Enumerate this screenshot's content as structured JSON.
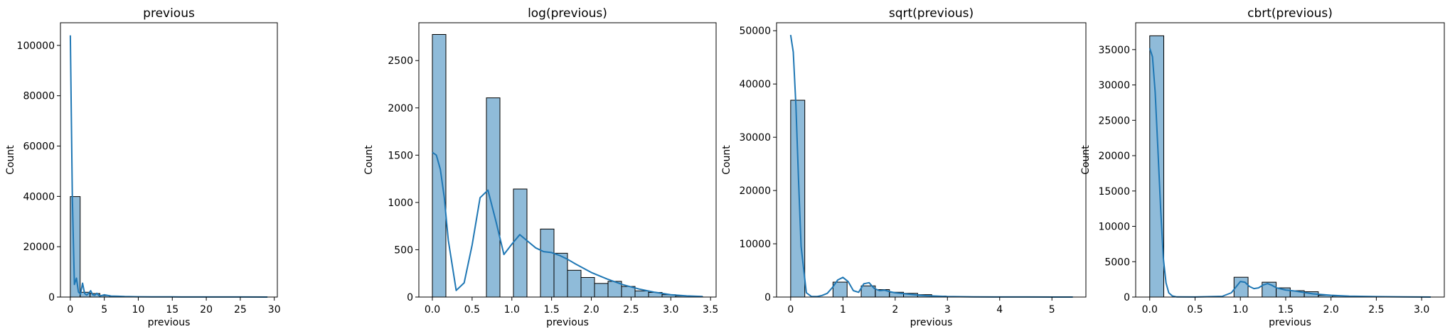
{
  "chart_data": [
    {
      "type": "bar",
      "title": "previous",
      "xlabel": "previous",
      "ylabel": "Count",
      "xlim": [
        -1.45,
        30.45
      ],
      "ylim": [
        0,
        109000
      ],
      "xticks": [
        0,
        5,
        10,
        15,
        20,
        25,
        30
      ],
      "yticks": [
        0,
        20000,
        40000,
        60000,
        80000,
        100000
      ],
      "bin_edges": [
        0,
        1.45,
        2.9,
        4.35,
        5.8,
        7.25,
        8.7,
        10.15,
        11.6,
        13.05,
        14.5,
        15.95,
        17.4,
        18.85,
        20.3,
        21.75,
        23.2,
        24.65,
        26.1,
        27.55,
        29
      ],
      "values": [
        39922,
        1900,
        1400,
        600,
        250,
        120,
        60,
        30,
        15,
        10,
        5,
        4,
        3,
        2,
        2,
        1,
        1,
        1,
        1,
        1
      ],
      "kde": {
        "x": [
          0,
          0.3,
          0.6,
          0.9,
          1.2,
          1.5,
          1.8,
          2.1,
          2.4,
          2.7,
          3.0,
          3.3,
          3.6,
          3.9,
          4.2,
          4.5,
          5,
          6,
          7,
          8,
          10,
          12,
          15,
          20,
          25,
          29
        ],
        "y": [
          104000,
          40000,
          5000,
          7500,
          2000,
          1200,
          5500,
          1500,
          800,
          1500,
          2500,
          900,
          700,
          1500,
          600,
          500,
          900,
          400,
          300,
          200,
          120,
          80,
          50,
          30,
          20,
          10
        ]
      }
    },
    {
      "type": "bar",
      "title": "log(previous)",
      "xlabel": "previous",
      "ylabel": "Count",
      "xlim": [
        -0.17,
        3.57
      ],
      "ylim": [
        0,
        2900
      ],
      "xticks": [
        "0.0",
        "0.5",
        "1.0",
        "1.5",
        "2.0",
        "2.5",
        "3.0",
        "3.5"
      ],
      "yticks": [
        0,
        500,
        1000,
        1500,
        2000,
        2500
      ],
      "bin_edges": [
        0,
        0.17,
        0.34,
        0.51,
        0.68,
        0.85,
        1.02,
        1.19,
        1.36,
        1.53,
        1.7,
        1.87,
        2.04,
        2.21,
        2.38,
        2.55,
        2.72,
        2.89,
        3.06,
        3.23,
        3.4
      ],
      "values": [
        2776,
        0,
        0,
        0,
        2106,
        0,
        1142,
        0,
        719,
        463,
        283,
        207,
        144,
        166,
        112,
        65,
        49,
        25,
        12,
        5
      ],
      "kde": {
        "x": [
          0,
          0.05,
          0.1,
          0.15,
          0.2,
          0.3,
          0.4,
          0.5,
          0.6,
          0.7,
          0.8,
          0.9,
          1.0,
          1.1,
          1.2,
          1.3,
          1.4,
          1.5,
          1.6,
          1.7,
          1.8,
          2.0,
          2.2,
          2.4,
          2.6,
          2.8,
          3.0,
          3.2,
          3.4
        ],
        "y": [
          1530,
          1500,
          1350,
          1050,
          600,
          70,
          150,
          550,
          1050,
          1130,
          800,
          450,
          560,
          660,
          590,
          520,
          480,
          470,
          440,
          400,
          350,
          260,
          190,
          130,
          85,
          50,
          25,
          12,
          5
        ]
      }
    },
    {
      "type": "bar",
      "title": "sqrt(previous)",
      "xlabel": "previous",
      "ylabel": "Count",
      "xlim": [
        -0.27,
        5.65
      ],
      "ylim": [
        0,
        51500
      ],
      "xticks": [
        0,
        1,
        2,
        3,
        4,
        5
      ],
      "yticks": [
        0,
        10000,
        20000,
        30000,
        40000,
        50000
      ],
      "bin_edges": [
        0,
        0.27,
        0.54,
        0.81,
        1.08,
        1.35,
        1.62,
        1.89,
        2.16,
        2.43,
        2.7,
        2.97,
        3.24,
        3.51,
        3.78,
        4.05,
        4.32,
        4.59,
        4.86,
        5.13,
        5.4
      ],
      "values": [
        36954,
        0,
        0,
        2800,
        0,
        2100,
        1400,
        900,
        700,
        450,
        200,
        80,
        40,
        20,
        12,
        8,
        5,
        3,
        2,
        1
      ],
      "kde": {
        "x": [
          0,
          0.05,
          0.1,
          0.15,
          0.2,
          0.3,
          0.4,
          0.5,
          0.6,
          0.7,
          0.8,
          0.9,
          1.0,
          1.1,
          1.2,
          1.3,
          1.4,
          1.5,
          1.6,
          1.7,
          1.8,
          1.9,
          2.0,
          2.2,
          2.4,
          2.6,
          3.0,
          3.5,
          4.0,
          4.5,
          5.0,
          5.4
        ],
        "y": [
          49200,
          46000,
          36000,
          22000,
          9500,
          800,
          100,
          100,
          300,
          700,
          1800,
          3200,
          3700,
          2900,
          1200,
          900,
          2500,
          2700,
          1600,
          1200,
          1300,
          1000,
          800,
          600,
          400,
          250,
          100,
          40,
          20,
          10,
          5,
          2
        ]
      }
    },
    {
      "type": "bar",
      "title": "cbrt(previous)",
      "xlabel": "previous",
      "ylabel": "Count",
      "xlim": [
        -0.155,
        3.25
      ],
      "ylim": [
        0,
        38800
      ],
      "xticks": [
        "0.0",
        "0.5",
        "1.0",
        "1.5",
        "2.0",
        "2.5",
        "3.0"
      ],
      "yticks": [
        0,
        5000,
        10000,
        15000,
        20000,
        25000,
        30000,
        35000
      ],
      "bin_edges": [
        0,
        0.155,
        0.31,
        0.465,
        0.62,
        0.775,
        0.93,
        1.085,
        1.24,
        1.395,
        1.55,
        1.705,
        1.86,
        2.015,
        2.17,
        2.325,
        2.48,
        2.635,
        2.79,
        2.945,
        3.1
      ],
      "values": [
        36954,
        0,
        0,
        0,
        0,
        0,
        2800,
        0,
        2100,
        1300,
        900,
        750,
        250,
        150,
        80,
        50,
        30,
        15,
        8,
        5
      ],
      "kde": {
        "x": [
          0,
          0.03,
          0.06,
          0.09,
          0.12,
          0.15,
          0.18,
          0.21,
          0.25,
          0.3,
          0.5,
          0.8,
          0.9,
          0.95,
          1.0,
          1.05,
          1.1,
          1.15,
          1.2,
          1.25,
          1.3,
          1.35,
          1.4,
          1.5,
          1.6,
          1.7,
          1.8,
          2.0,
          2.2,
          2.5,
          2.8,
          3.1
        ],
        "y": [
          35200,
          34000,
          29000,
          21000,
          12500,
          5500,
          2000,
          600,
          150,
          20,
          10,
          100,
          600,
          1400,
          2200,
          2100,
          1500,
          1200,
          1300,
          1700,
          1900,
          1650,
          1300,
          1000,
          850,
          650,
          450,
          250,
          130,
          60,
          20,
          5
        ]
      }
    }
  ],
  "colors": {
    "bar_fill": "#1f77b4",
    "bar_edge": "#000000",
    "kde_line": "#1f77b4",
    "axes": "#000000"
  }
}
